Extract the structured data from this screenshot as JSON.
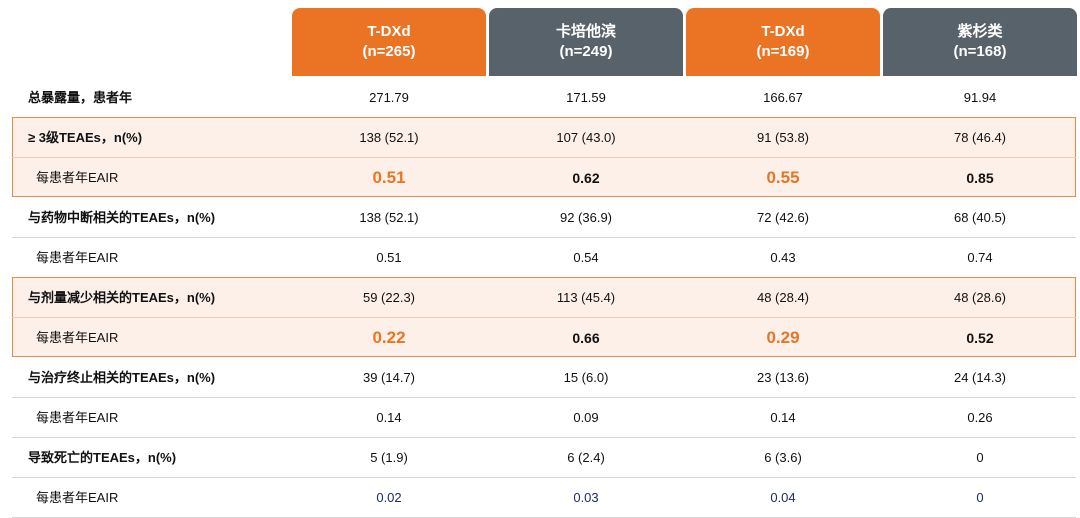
{
  "header": {
    "columns": [
      {
        "name": "T-DXd",
        "n": "(n=265)"
      },
      {
        "name": "卡培他滨",
        "n": "(n=249)"
      },
      {
        "name": "T-DXd",
        "n": "(n=169)"
      },
      {
        "name": "紫杉类",
        "n": "(n=168)"
      }
    ]
  },
  "table": {
    "rows": [
      {
        "label": "总暴露量，患者年",
        "values": [
          "271.79",
          "171.59",
          "166.67",
          "91.94"
        ]
      },
      {
        "label": "≥ 3级TEAEs，n(%)",
        "values": [
          "138 (52.1)",
          "107 (43.0)",
          "91 (53.8)",
          "78 (46.4)"
        ]
      },
      {
        "label": "每患者年EAIR",
        "values": [
          "0.51",
          "0.62",
          "0.55",
          "0.85"
        ]
      },
      {
        "label": "与药物中断相关的TEAEs，n(%)",
        "values": [
          "138 (52.1)",
          "92 (36.9)",
          "72 (42.6)",
          "68 (40.5)"
        ]
      },
      {
        "label": "每患者年EAIR",
        "values": [
          "0.51",
          "0.54",
          "0.43",
          "0.74"
        ]
      },
      {
        "label": "与剂量减少相关的TEAEs，n(%)",
        "values": [
          "59 (22.3)",
          "113 (45.4)",
          "48 (28.4)",
          "48 (28.6)"
        ]
      },
      {
        "label": "每患者年EAIR",
        "values": [
          "0.22",
          "0.66",
          "0.29",
          "0.52"
        ]
      },
      {
        "label": "与治疗终止相关的TEAEs，n(%)",
        "values": [
          "39 (14.7)",
          "15 (6.0)",
          "23 (13.6)",
          "24 (14.3)"
        ]
      },
      {
        "label": "每患者年EAIR",
        "values": [
          "0.14",
          "0.09",
          "0.14",
          "0.26"
        ]
      },
      {
        "label": "导致死亡的TEAEs，n(%)",
        "values": [
          "5 (1.9)",
          "6 (2.4)",
          "6 (3.6)",
          "0"
        ]
      },
      {
        "label": "每患者年EAIR",
        "values": [
          "0.02",
          "0.03",
          "0.04",
          "0"
        ]
      }
    ]
  }
}
